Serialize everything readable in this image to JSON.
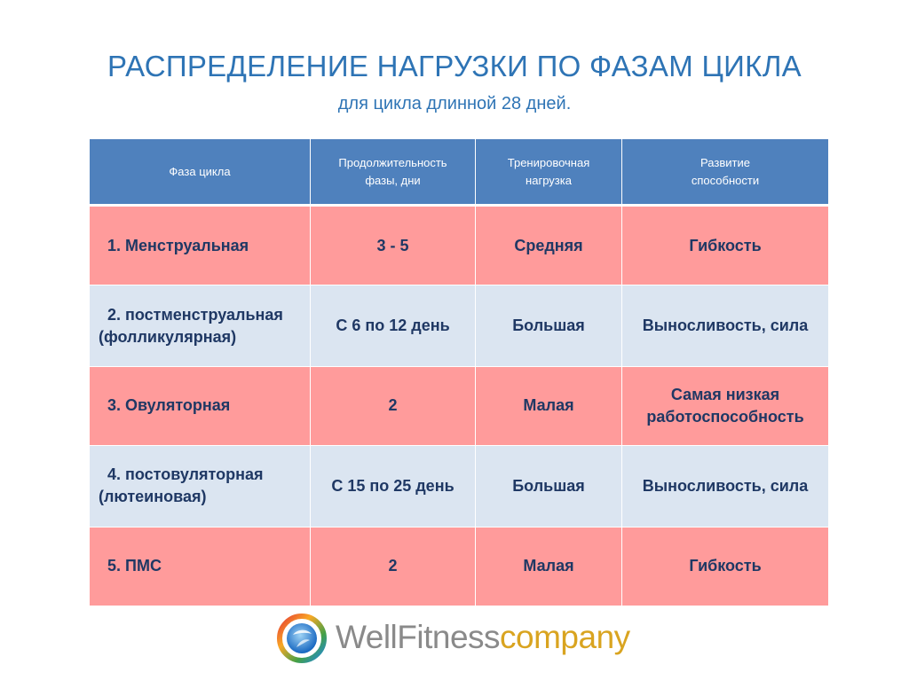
{
  "header": {
    "title": "РАСПРЕДЕЛЕНИЕ НАГРУЗКИ ПО ФАЗАМ ЦИКЛА",
    "subtitle": "для цикла длинной 28 дней."
  },
  "table": {
    "columns": [
      {
        "line1": "Фаза цикла",
        "line2": ""
      },
      {
        "line1": "Продолжительность",
        "line2": "фазы, дни"
      },
      {
        "line1": "Тренировочная",
        "line2": "нагрузка"
      },
      {
        "line1": "Развитие",
        "line2": "способности"
      }
    ],
    "rows": [
      {
        "phase_line1": "1. Менструальная",
        "phase_line2": "",
        "duration": "3 - 5",
        "load": "Средняя",
        "ability_line1": "Гибкость",
        "ability_line2": ""
      },
      {
        "phase_line1": "2. постменструальная",
        "phase_line2": "(фолликулярная)",
        "duration": "С 6 по 12 день",
        "load": "Большая",
        "ability_line1": "Выносливость, сила",
        "ability_line2": ""
      },
      {
        "phase_line1": "3. Овуляторная",
        "phase_line2": "",
        "duration": "2",
        "load": "Малая",
        "ability_line1": "Самая низкая",
        "ability_line2": "работоспособность"
      },
      {
        "phase_line1": "4. постовуляторная",
        "phase_line2": "(лютеиновая)",
        "duration": "С 15 по 25 день",
        "load": "Большая",
        "ability_line1": "Выносливость, сила",
        "ability_line2": ""
      },
      {
        "phase_line1": "5. ПМС",
        "phase_line2": "",
        "duration": "2",
        "load": "Малая",
        "ability_line1": "Гибкость",
        "ability_line2": ""
      }
    ]
  },
  "logo": {
    "word1": "WellFitness",
    "word2": "company"
  },
  "colors": {
    "title": "#2e74b5",
    "header_fill": "#4f81bd",
    "row_pink": "#ff9b9b",
    "row_blue": "#dbe5f1",
    "cell_text": "#1f3864"
  }
}
